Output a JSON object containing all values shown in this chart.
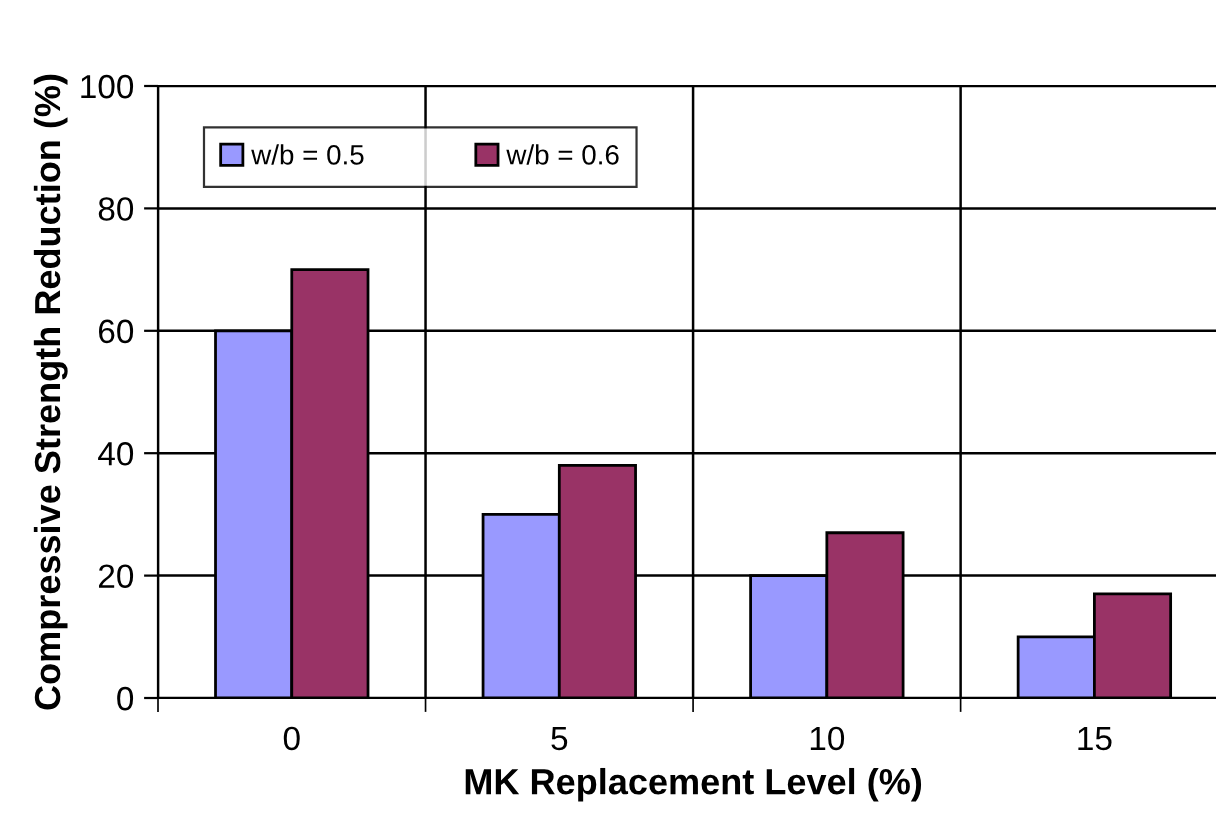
{
  "chart_data": {
    "type": "bar",
    "xlabel": "MK Replacement Level (%)",
    "ylabel": "Compressive Strength Reduction (%)",
    "categories": [
      "0",
      "5",
      "10",
      "15"
    ],
    "series": [
      {
        "name": "w/b = 0.5",
        "color": "#9999ff",
        "values": [
          60,
          30,
          20,
          10
        ]
      },
      {
        "name": "w/b = 0.6",
        "color": "#993366",
        "values": [
          70,
          38,
          27,
          17
        ]
      }
    ],
    "ylim": [
      0,
      100
    ],
    "yticks": [
      0,
      20,
      40,
      60,
      80,
      100
    ],
    "grid": true,
    "legend": "top left"
  }
}
